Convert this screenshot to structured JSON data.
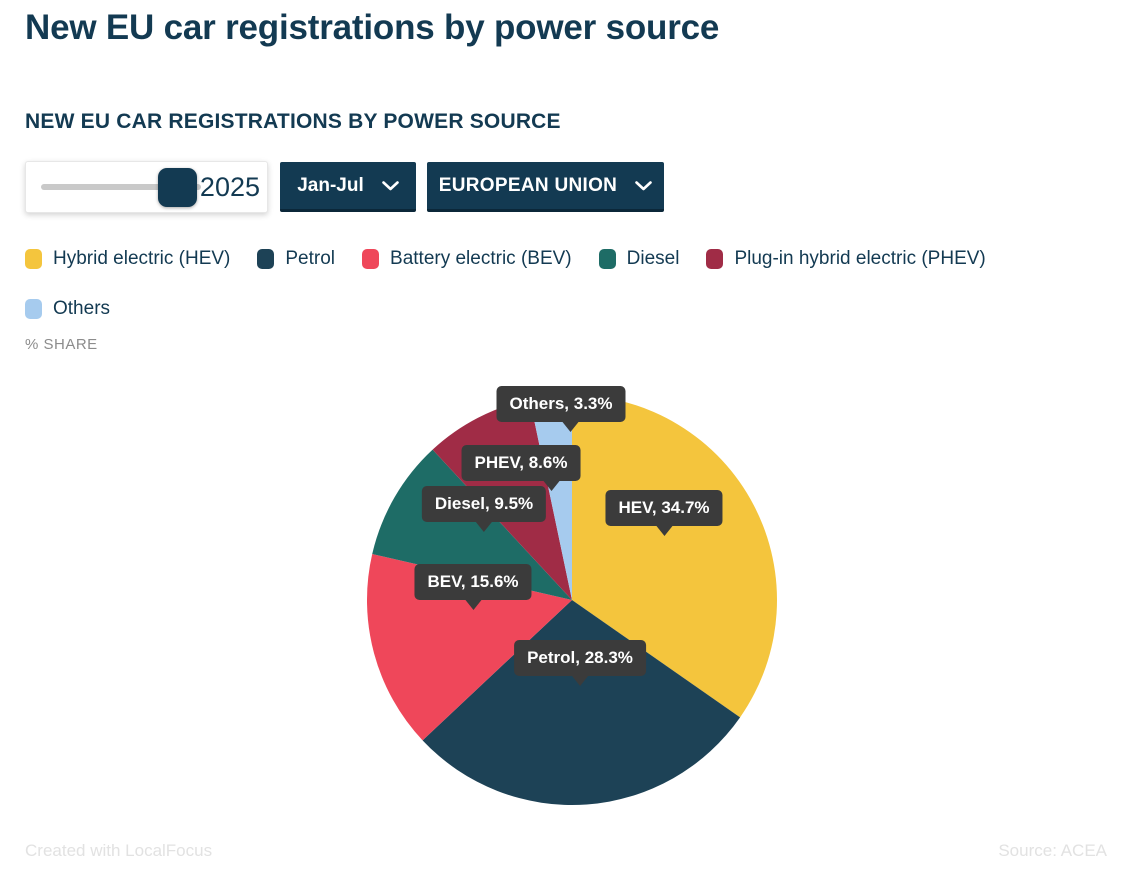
{
  "page_title": "New EU car registrations by power source",
  "chart_title": "NEW EU CAR REGISTRATIONS BY POWER SOURCE",
  "controls": {
    "year_slider": {
      "value": "2025"
    },
    "period_dropdown": {
      "label": "Jan-Jul",
      "icon": "chevron-down"
    },
    "region_dropdown": {
      "label": "EUROPEAN UNION",
      "icon": "chevron-down"
    }
  },
  "unit_label": "% SHARE",
  "chart_data": {
    "type": "pie",
    "title": "NEW EU CAR REGISTRATIONS BY POWER SOURCE",
    "unit": "% share",
    "start_angle_deg": 0,
    "direction": "clockwise",
    "legend_position": "top",
    "slices": [
      {
        "label": "Hybrid electric (HEV)",
        "short": "HEV",
        "value": 34.7,
        "display": "HEV, 34.7%",
        "color": "#F4C53D"
      },
      {
        "label": "Petrol",
        "short": "Petrol",
        "value": 28.3,
        "display": "Petrol, 28.3%",
        "color": "#1D4256"
      },
      {
        "label": "Battery electric (BEV)",
        "short": "BEV",
        "value": 15.6,
        "display": "BEV, 15.6%",
        "color": "#EF475A"
      },
      {
        "label": "Diesel",
        "short": "Diesel",
        "value": 9.5,
        "display": "Diesel, 9.5%",
        "color": "#1E6C66"
      },
      {
        "label": "Plug-in hybrid electric (PHEV)",
        "short": "PHEV",
        "value": 8.6,
        "display": "PHEV, 8.6%",
        "color": "#A02C46"
      },
      {
        "label": "Others",
        "short": "Others",
        "value": 3.3,
        "display": "Others, 3.3%",
        "color": "#A6CBEE"
      }
    ]
  },
  "footer": {
    "left": "Created with LocalFocus",
    "right": "Source: ACEA"
  },
  "colors": {
    "accent_navy": "#133A52",
    "tooltip_bg": "#3B3B3B",
    "slider_track": "#C9C9C9"
  }
}
